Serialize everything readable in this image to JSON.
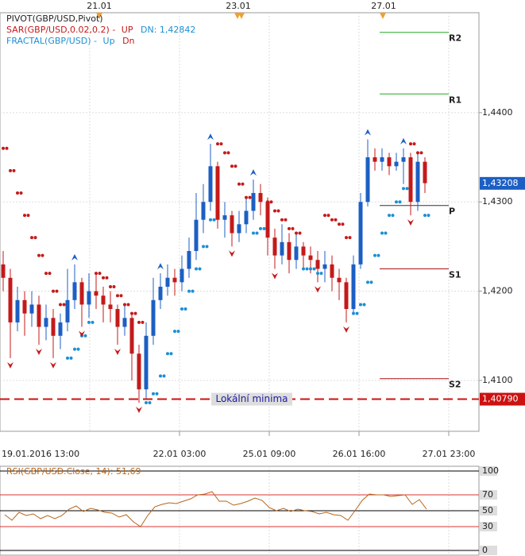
{
  "chart_data": {
    "type": "candlestick",
    "legend": {
      "pivot": "PIVOT(GBP/USD,Pivot)",
      "sar": "SAR(GBP/USD,0.02,0.2) -",
      "sar_up": "UP",
      "sar_dn": "DN: 1,42842",
      "fractal": "FRACTAL(GBP/USD) -",
      "fractal_up": "Up",
      "fractal_dn": "Dn"
    },
    "top_dates": [
      "21.01",
      "23.01",
      "27.01"
    ],
    "x_labels": [
      "19.01.2016 13:00",
      "22.01 03:00",
      "25.01 09:00",
      "26.01 16:00",
      "27.01 23:00"
    ],
    "up_color": "#1c5fc4",
    "down_color": "#c41a1a",
    "candles": {
      "open": [
        1.423,
        1.4215,
        1.4165,
        1.419,
        1.4175,
        1.4185,
        1.416,
        1.417,
        1.415,
        1.4165,
        1.419,
        1.421,
        1.4185,
        1.42,
        1.4195,
        1.4185,
        1.418,
        1.416,
        1.417,
        1.413,
        1.409,
        1.415,
        1.419,
        1.4205,
        1.4215,
        1.421,
        1.4225,
        1.4245,
        1.428,
        1.43,
        1.434,
        1.428,
        1.4285,
        1.4265,
        1.4275,
        1.429,
        1.431,
        1.43,
        1.426,
        1.424,
        1.4255,
        1.4235,
        1.425,
        1.424,
        1.4235,
        1.4225,
        1.423,
        1.4215,
        1.421,
        1.418,
        1.423,
        1.43,
        1.435,
        1.4345,
        1.435,
        1.434,
        1.4345,
        1.435,
        1.43,
        1.4345
      ],
      "high": [
        1.4245,
        1.4225,
        1.4205,
        1.42,
        1.42,
        1.4195,
        1.4185,
        1.418,
        1.4175,
        1.4225,
        1.423,
        1.4215,
        1.422,
        1.422,
        1.4205,
        1.42,
        1.4185,
        1.4185,
        1.4175,
        1.414,
        1.4165,
        1.4215,
        1.422,
        1.423,
        1.4225,
        1.424,
        1.426,
        1.431,
        1.432,
        1.4365,
        1.4345,
        1.43,
        1.429,
        1.429,
        1.4305,
        1.4325,
        1.432,
        1.4305,
        1.427,
        1.4275,
        1.4265,
        1.4265,
        1.4255,
        1.425,
        1.4245,
        1.4245,
        1.424,
        1.4225,
        1.4215,
        1.424,
        1.431,
        1.437,
        1.436,
        1.436,
        1.4355,
        1.4355,
        1.436,
        1.4355,
        1.4355,
        1.435
      ],
      "low": [
        1.42,
        1.4125,
        1.4155,
        1.415,
        1.416,
        1.414,
        1.4145,
        1.4125,
        1.4135,
        1.4155,
        1.418,
        1.416,
        1.417,
        1.418,
        1.4165,
        1.4165,
        1.414,
        1.415,
        1.41,
        1.4075,
        1.408,
        1.414,
        1.418,
        1.4195,
        1.4195,
        1.42,
        1.4215,
        1.4235,
        1.4265,
        1.429,
        1.427,
        1.426,
        1.425,
        1.4255,
        1.4265,
        1.428,
        1.4285,
        1.424,
        1.4225,
        1.423,
        1.422,
        1.4225,
        1.4225,
        1.422,
        1.421,
        1.421,
        1.42,
        1.419,
        1.4165,
        1.4175,
        1.4225,
        1.4295,
        1.4335,
        1.4335,
        1.433,
        1.4335,
        1.432,
        1.4285,
        1.429,
        1.431
      ],
      "close": [
        1.4215,
        1.4165,
        1.419,
        1.4175,
        1.4185,
        1.416,
        1.417,
        1.415,
        1.4165,
        1.419,
        1.421,
        1.4185,
        1.42,
        1.4195,
        1.4185,
        1.418,
        1.416,
        1.417,
        1.413,
        1.409,
        1.415,
        1.419,
        1.4205,
        1.4215,
        1.421,
        1.4225,
        1.4245,
        1.428,
        1.43,
        1.434,
        1.428,
        1.4285,
        1.4265,
        1.4275,
        1.429,
        1.431,
        1.43,
        1.426,
        1.424,
        1.4255,
        1.4235,
        1.425,
        1.424,
        1.4235,
        1.4225,
        1.423,
        1.4215,
        1.421,
        1.418,
        1.423,
        1.43,
        1.435,
        1.4345,
        1.435,
        1.434,
        1.4345,
        1.435,
        1.43,
        1.4345,
        1.4321
      ]
    },
    "sar": [
      1.436,
      1.4335,
      1.431,
      1.4285,
      1.426,
      1.424,
      1.422,
      1.42,
      1.4185,
      1.4125,
      1.4135,
      1.415,
      1.4165,
      1.422,
      1.4215,
      1.4205,
      1.4195,
      1.4185,
      1.4175,
      1.4165,
      1.4075,
      1.4085,
      1.4105,
      1.413,
      1.4155,
      1.418,
      1.42,
      1.4225,
      1.425,
      1.428,
      1.4365,
      1.4355,
      1.434,
      1.432,
      1.4305,
      1.4265,
      1.427,
      1.43,
      1.429,
      1.428,
      1.427,
      1.4265,
      1.4225,
      1.4225,
      1.422,
      1.4285,
      1.428,
      1.4275,
      1.426,
      1.4175,
      1.4185,
      1.421,
      1.424,
      1.4265,
      1.4285,
      1.43,
      1.4315,
      1.4365,
      1.4355,
      1.4285
    ],
    "fractal_up": [
      null,
      null,
      null,
      null,
      null,
      null,
      null,
      null,
      null,
      null,
      1.423,
      null,
      null,
      null,
      null,
      null,
      null,
      null,
      null,
      null,
      null,
      null,
      1.422,
      null,
      null,
      null,
      null,
      null,
      null,
      1.4365,
      null,
      null,
      null,
      null,
      null,
      1.4325,
      null,
      null,
      null,
      null,
      null,
      null,
      null,
      null,
      null,
      null,
      null,
      null,
      null,
      null,
      null,
      1.437,
      null,
      null,
      null,
      null,
      1.436,
      null,
      null,
      null
    ],
    "fractal_down": [
      null,
      1.4125,
      null,
      null,
      null,
      1.414,
      null,
      1.4125,
      null,
      null,
      null,
      1.416,
      null,
      null,
      null,
      null,
      1.414,
      null,
      null,
      1.4075,
      null,
      null,
      null,
      null,
      null,
      null,
      null,
      null,
      null,
      null,
      null,
      null,
      1.425,
      null,
      null,
      null,
      null,
      null,
      1.4225,
      null,
      null,
      null,
      null,
      null,
      1.421,
      null,
      null,
      null,
      1.4165,
      null,
      null,
      null,
      null,
      null,
      null,
      null,
      null,
      1.4285,
      null,
      null
    ],
    "pivots": [
      {
        "name": "R2",
        "value": 1.449,
        "color": "#22aa22"
      },
      {
        "name": "R1",
        "value": 1.4421,
        "color": "#22aa22"
      },
      {
        "name": "P",
        "value": 1.4296,
        "color": "#333333"
      },
      {
        "name": "S1",
        "value": 1.4225,
        "color": "#aa1111"
      },
      {
        "name": "S2",
        "value": 1.4102,
        "color": "#aa1111"
      }
    ],
    "support_line": {
      "label": "Lokální minima",
      "value": 1.4079,
      "value_label": "1,40790",
      "color": "#cc1111"
    },
    "last_price": {
      "value": 1.43208,
      "label": "1,43208",
      "color": "#1c5fc4"
    },
    "ylim": [
      1.4043,
      1.4512
    ],
    "yticks": [
      {
        "value": 1.44,
        "label": "1,4400"
      },
      {
        "value": 1.43,
        "label": "1,4300"
      },
      {
        "value": 1.42,
        "label": "1,4200"
      },
      {
        "value": 1.41,
        "label": "1,4100"
      }
    ],
    "grid": true,
    "rsi": {
      "title": "RSI(GBP/USD.Close, 14): 51,69",
      "color": "#b5651d",
      "values": [
        45,
        38,
        48,
        44,
        46,
        40,
        44,
        40,
        44,
        52,
        56,
        49,
        53,
        51,
        48,
        47,
        42,
        45,
        36,
        30,
        44,
        55,
        58,
        60,
        59,
        62,
        65,
        70,
        71,
        74,
        62,
        62,
        57,
        59,
        62,
        66,
        63,
        54,
        50,
        53,
        49,
        52,
        50,
        49,
        46,
        48,
        45,
        44,
        38,
        50,
        63,
        71,
        70,
        70,
        68,
        69,
        70,
        58,
        64,
        52
      ],
      "ylim": [
        0,
        100
      ],
      "yticks": [
        100,
        70,
        50,
        30,
        0
      ],
      "level_colors": [
        "#000000",
        "#dd3333",
        "#000000",
        "#dd3333",
        "#000000"
      ]
    }
  }
}
